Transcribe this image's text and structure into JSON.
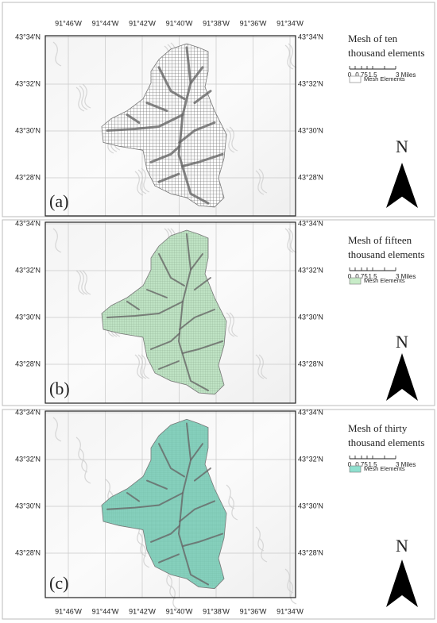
{
  "lon_labels": [
    "91°46'W",
    "91°44'W",
    "91°42'W",
    "91°40'W",
    "91°38'W",
    "91°36'W",
    "91°34'W"
  ],
  "lat_labels": [
    "43°34'N",
    "43°32'N",
    "43°30'N",
    "43°28'N"
  ],
  "scale_labels": [
    "0",
    "0.75",
    "1.5",
    "3 Miles"
  ],
  "north": "N",
  "panels": [
    {
      "label": "(a)",
      "title": [
        "Mesh   of   ten",
        "thousand elements"
      ],
      "legend": "Mesh Elements"
    },
    {
      "label": "(b)",
      "title": [
        "Mesh   of   fifteen",
        "thousand elements"
      ],
      "legend": "Mesh Elements"
    },
    {
      "label": "(c)",
      "title": [
        "Mesh   of   thirty",
        "thousand elements"
      ],
      "legend": "Mesh Elements"
    }
  ]
}
